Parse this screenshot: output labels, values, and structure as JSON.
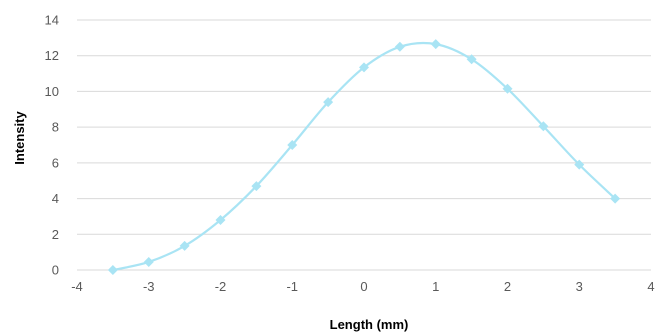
{
  "chart_data": {
    "type": "scatter",
    "title": "",
    "xlabel": "Length (mm)",
    "ylabel": "Intensity",
    "xlim": [
      -4,
      4
    ],
    "ylim": [
      0,
      14
    ],
    "x_ticks": [
      -4,
      -3,
      -2,
      -1,
      0,
      1,
      2,
      3,
      4
    ],
    "y_ticks": [
      0,
      2,
      4,
      6,
      8,
      10,
      12,
      14
    ],
    "grid": "horizontal",
    "legend": "none",
    "marker": "diamond",
    "line": "smooth",
    "color": "#a9e4f4",
    "series": [
      {
        "x": [
          -3.5,
          -3,
          -2.5,
          -2,
          -1.5,
          -1,
          -0.5,
          0,
          0.5,
          1,
          1.5,
          2,
          2.5,
          3,
          3.5
        ],
        "y": [
          0.0,
          0.45,
          1.35,
          2.8,
          4.7,
          7.0,
          9.4,
          11.35,
          12.5,
          12.65,
          11.8,
          10.15,
          8.05,
          5.9,
          4.0
        ]
      }
    ]
  }
}
